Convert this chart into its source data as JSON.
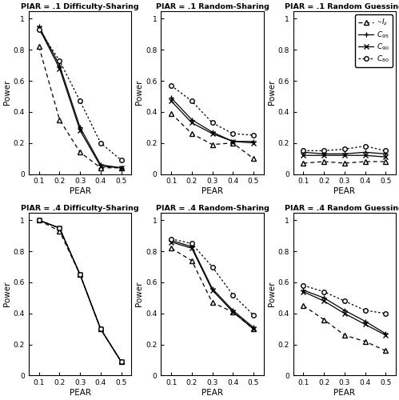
{
  "x": [
    0.1,
    0.2,
    0.3,
    0.4,
    0.5
  ],
  "panels": [
    {
      "title": "PIAR = .1 Difficulty-Sharing",
      "Iz": [
        0.82,
        0.35,
        0.14,
        0.04,
        0.04
      ],
      "C95": [
        0.95,
        0.7,
        0.3,
        0.06,
        0.04
      ],
      "C90": [
        0.94,
        0.68,
        0.28,
        0.05,
        0.04
      ],
      "C80": [
        0.93,
        0.73,
        0.47,
        0.2,
        0.09
      ]
    },
    {
      "title": "PIAR = .1 Random-Sharing",
      "Iz": [
        0.39,
        0.26,
        0.19,
        0.2,
        0.1
      ],
      "C95": [
        0.49,
        0.35,
        0.27,
        0.21,
        0.21
      ],
      "C90": [
        0.47,
        0.33,
        0.26,
        0.21,
        0.2
      ],
      "C80": [
        0.57,
        0.47,
        0.33,
        0.26,
        0.25
      ]
    },
    {
      "title": "PIAR = .1 Random Guessing",
      "Iz": [
        0.07,
        0.08,
        0.07,
        0.08,
        0.08
      ],
      "C95": [
        0.14,
        0.13,
        0.13,
        0.14,
        0.13
      ],
      "C90": [
        0.12,
        0.12,
        0.12,
        0.12,
        0.11
      ],
      "C80": [
        0.15,
        0.15,
        0.16,
        0.18,
        0.15
      ]
    },
    {
      "title": "PIAR = .4 Difficulty-Sharing",
      "Iz": [
        1.0,
        0.93,
        0.65,
        0.3,
        0.09
      ],
      "C95": [
        1.0,
        0.95,
        0.65,
        0.3,
        0.09
      ],
      "C90": [
        1.0,
        0.95,
        0.65,
        0.3,
        0.09
      ],
      "C80": [
        1.0,
        0.95,
        0.65,
        0.3,
        0.09
      ]
    },
    {
      "title": "PIAR = .4 Random-Sharing",
      "Iz": [
        0.82,
        0.74,
        0.47,
        0.41,
        0.3
      ],
      "C95": [
        0.87,
        0.83,
        0.56,
        0.42,
        0.31
      ],
      "C90": [
        0.86,
        0.82,
        0.55,
        0.41,
        0.3
      ],
      "C80": [
        0.88,
        0.85,
        0.7,
        0.52,
        0.39
      ]
    },
    {
      "title": "PIAR = .4 Random Guessing",
      "Iz": [
        0.45,
        0.36,
        0.26,
        0.22,
        0.16
      ],
      "C95": [
        0.55,
        0.5,
        0.42,
        0.35,
        0.27
      ],
      "C90": [
        0.54,
        0.48,
        0.4,
        0.33,
        0.26
      ],
      "C80": [
        0.58,
        0.54,
        0.48,
        0.42,
        0.4
      ]
    }
  ],
  "xlabel": "PEAR",
  "ylabel": "Power",
  "xlim": [
    0.05,
    0.55
  ],
  "ylim": [
    0,
    1.05
  ],
  "xticks": [
    0.1,
    0.2,
    0.3,
    0.4,
    0.5
  ],
  "xticklabels": [
    "0.1",
    "0.2",
    "0.3",
    "0.4",
    "0.5"
  ],
  "yticks": [
    0,
    0.2,
    0.4,
    0.6,
    0.8,
    1
  ],
  "yticklabels": [
    "0",
    "0.2",
    "0.4",
    "0.6",
    "0.8",
    "1"
  ],
  "bg_color": "#f0f0f0",
  "face_color": "white"
}
